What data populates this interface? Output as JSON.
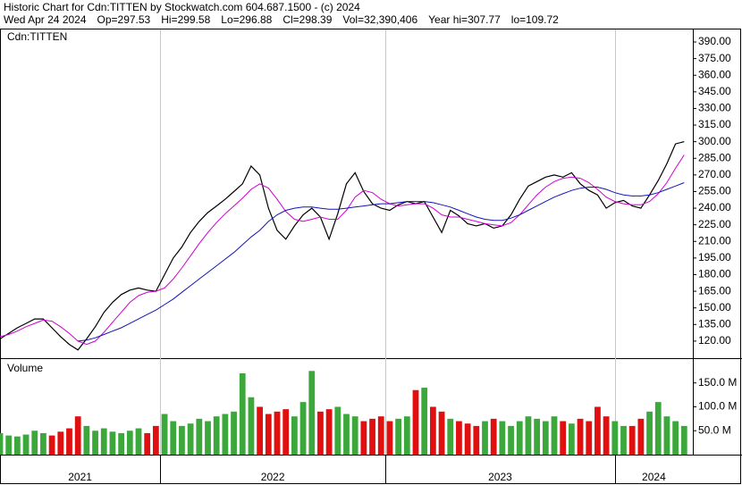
{
  "chart_data": [
    {
      "type": "line",
      "title": "Historic Chart for Cdn:TITTEN by Stockwatch.com 604.687.1500 - (c) 2024",
      "subtitle": [
        "Wed Apr 24 2024",
        "Op=297.53",
        "Hi=299.58",
        "Lo=296.88",
        "Cl=298.39",
        "Vol=32,390,406",
        "Year hi=307.77",
        "lo=109.72"
      ],
      "panel_label": "Cdn:TITTEN",
      "x": [
        0,
        2,
        4,
        6,
        8,
        10,
        12,
        14,
        16,
        18,
        20,
        22,
        24,
        26,
        28,
        30,
        32,
        34,
        36,
        38,
        40,
        42,
        44,
        46,
        48,
        50,
        52,
        54,
        56,
        58,
        60,
        62,
        64,
        66,
        68,
        70,
        72,
        74,
        76,
        78,
        80,
        82,
        84,
        86,
        88,
        90,
        92,
        94,
        96,
        98,
        100,
        102,
        104,
        106,
        108,
        110,
        112,
        114,
        116,
        118,
        120,
        122,
        124,
        126,
        128,
        130,
        132,
        134,
        136,
        138,
        140,
        142,
        144,
        146,
        148,
        150,
        152,
        154,
        156,
        158
      ],
      "xlim": [
        0,
        160
      ],
      "ylim": [
        104.6,
        401.3
      ],
      "yticks": [
        {
          "value": 120,
          "label": "120.00"
        },
        {
          "value": 135,
          "label": "135.00"
        },
        {
          "value": 150,
          "label": "150.00"
        },
        {
          "value": 165,
          "label": "165.00"
        },
        {
          "value": 180,
          "label": "180.00"
        },
        {
          "value": 195,
          "label": "195.00"
        },
        {
          "value": 210,
          "label": "210.00"
        },
        {
          "value": 225,
          "label": "225.00"
        },
        {
          "value": 240,
          "label": "240.00"
        },
        {
          "value": 255,
          "label": "255.00"
        },
        {
          "value": 270,
          "label": "270.00"
        },
        {
          "value": 285,
          "label": "285.00"
        },
        {
          "value": 300,
          "label": "300.00"
        },
        {
          "value": 315,
          "label": "315.00"
        },
        {
          "value": 330,
          "label": "330.00"
        },
        {
          "value": 345,
          "label": "345.00"
        },
        {
          "value": 360,
          "label": "360.00"
        },
        {
          "value": 375,
          "label": "375.00"
        },
        {
          "value": 390,
          "label": "390.00"
        }
      ],
      "series": [
        {
          "color": "#000000",
          "values": [
            122,
            127,
            132,
            136,
            140,
            140,
            132,
            124,
            117,
            112,
            122,
            133,
            146,
            155,
            162,
            166,
            168,
            166,
            165,
            180,
            195,
            205,
            218,
            228,
            236,
            242,
            248,
            255,
            262,
            278,
            270,
            240,
            220,
            212,
            224,
            234,
            240,
            232,
            212,
            235,
            262,
            272,
            255,
            244,
            240,
            238,
            243,
            246,
            244,
            246,
            232,
            218,
            238,
            233,
            226,
            224,
            226,
            222,
            224,
            234,
            248,
            260,
            264,
            268,
            270,
            268,
            272,
            262,
            256,
            252,
            240,
            245,
            247,
            242,
            240,
            252,
            265,
            280,
            298,
            300
          ]
        },
        {
          "color": "#d000d0",
          "values": [
            124,
            126,
            129,
            133,
            136,
            139,
            138,
            133,
            127,
            120,
            117,
            120,
            128,
            137,
            146,
            155,
            161,
            164,
            165,
            168,
            176,
            186,
            197,
            208,
            218,
            227,
            235,
            242,
            249,
            257,
            262,
            258,
            248,
            237,
            230,
            228,
            230,
            232,
            230,
            230,
            238,
            250,
            256,
            254,
            248,
            244,
            242,
            243,
            244,
            244,
            240,
            234,
            232,
            232,
            230,
            228,
            226,
            225,
            224,
            227,
            234,
            243,
            252,
            259,
            264,
            267,
            268,
            267,
            263,
            257,
            250,
            246,
            244,
            243,
            243,
            246,
            253,
            263,
            276,
            288
          ]
        },
        {
          "color": "#1414b8",
          "values": [
            null,
            null,
            null,
            null,
            null,
            null,
            null,
            null,
            null,
            120,
            121,
            123,
            126,
            129,
            132,
            136,
            140,
            144,
            148,
            153,
            158,
            164,
            170,
            176,
            182,
            188,
            194,
            200,
            207,
            214,
            220,
            228,
            234,
            238,
            240,
            241,
            241,
            240,
            239,
            239,
            240,
            241,
            242,
            243,
            244,
            244,
            245,
            246,
            246,
            246,
            245,
            243,
            241,
            238,
            235,
            232,
            230,
            229,
            229,
            231,
            234,
            238,
            242,
            246,
            250,
            253,
            256,
            258,
            259,
            259,
            257,
            254,
            252,
            251,
            251,
            252,
            254,
            257,
            260,
            263
          ]
        }
      ]
    },
    {
      "type": "bar",
      "title": "Volume",
      "x": [
        0,
        2,
        4,
        6,
        8,
        10,
        12,
        14,
        16,
        18,
        20,
        22,
        24,
        26,
        28,
        30,
        32,
        34,
        36,
        38,
        40,
        42,
        44,
        46,
        48,
        50,
        52,
        54,
        56,
        58,
        60,
        62,
        64,
        66,
        68,
        70,
        72,
        74,
        76,
        78,
        80,
        82,
        84,
        86,
        88,
        90,
        92,
        94,
        96,
        98,
        100,
        102,
        104,
        106,
        108,
        110,
        112,
        114,
        116,
        118,
        120,
        122,
        124,
        126,
        128,
        130,
        132,
        134,
        136,
        138,
        140,
        142,
        144,
        146,
        148,
        150,
        152,
        154,
        156,
        158
      ],
      "xlim": [
        0,
        160
      ],
      "xticks": [
        {
          "value": -16,
          "label": "2021"
        },
        {
          "value": 37,
          "label": "2022"
        },
        {
          "value": 89,
          "label": "2023"
        },
        {
          "value": 142,
          "label": "2024"
        }
      ],
      "ylim": [
        0,
        198
      ],
      "yticks": [
        {
          "value": 50,
          "label": "50.0 M"
        },
        {
          "value": 100,
          "label": "100.0 M"
        },
        {
          "value": 150,
          "label": "150.0 M"
        }
      ],
      "up_color": "#3ca83c",
      "down_color": "#e01010",
      "values": [
        45,
        40,
        38,
        42,
        50,
        45,
        40,
        48,
        55,
        80,
        60,
        50,
        55,
        48,
        45,
        50,
        55,
        45,
        60,
        85,
        70,
        60,
        65,
        75,
        70,
        80,
        85,
        90,
        170,
        120,
        100,
        85,
        90,
        95,
        80,
        110,
        175,
        90,
        95,
        100,
        85,
        80,
        70,
        75,
        80,
        70,
        75,
        80,
        135,
        140,
        100,
        90,
        75,
        70,
        65,
        60,
        70,
        75,
        70,
        60,
        70,
        80,
        75,
        70,
        80,
        70,
        65,
        75,
        70,
        100,
        80,
        70,
        60,
        60,
        75,
        90,
        110,
        80,
        70,
        60
      ]
    }
  ]
}
